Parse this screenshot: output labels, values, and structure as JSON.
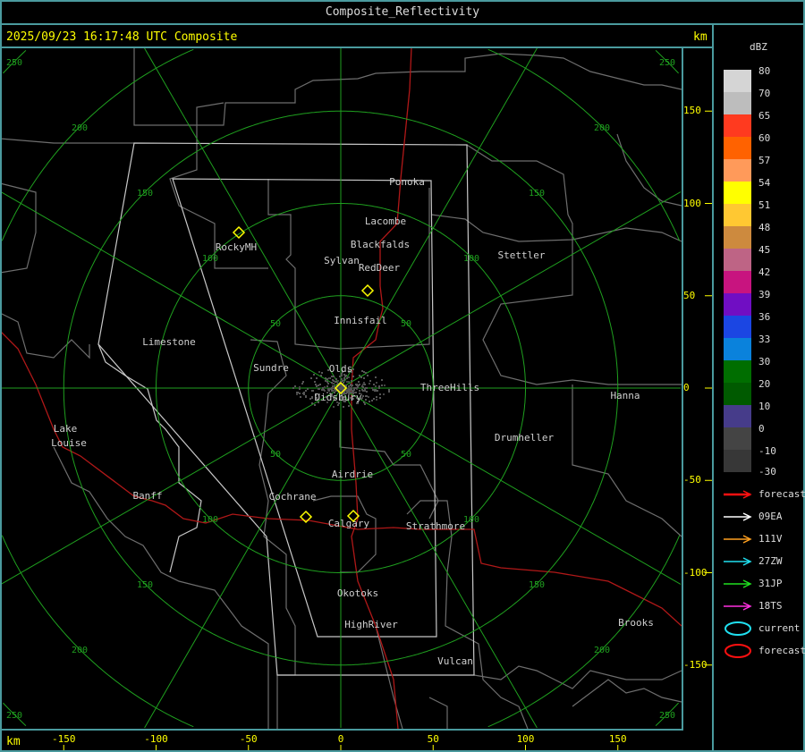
{
  "window": {
    "title": "Composite_Reflectivity"
  },
  "header": {
    "timestamp": "2025/09/23 16:17:48 UTC Composite",
    "unit_top": "km",
    "unit_bottom": "km"
  },
  "axes": {
    "x_ticks": [
      "-150",
      "-100",
      "-50",
      "0",
      "50",
      "100",
      "150"
    ],
    "y_ticks": [
      "150",
      "100",
      "50",
      "0",
      "-50",
      "-100",
      "-150"
    ]
  },
  "rings": {
    "labels": [
      "50",
      "100",
      "150",
      "200",
      "250"
    ],
    "color": "#1fa01f"
  },
  "towns": [
    "Ponoka",
    "Lacombe",
    "Blackfalds",
    "Sylvan",
    "RedDeer",
    "RockyMH",
    "Stettler",
    "Innisfail",
    "Limestone",
    "Sundre",
    "Olds",
    "Didsbury",
    "ThreeHills",
    "Hanna",
    "Drumheller",
    "Lake",
    "Louise",
    "Airdrie",
    "Banff",
    "Cochrane",
    "Calgary",
    "Strathmore",
    "Okotoks",
    "HighRiver",
    "Brooks",
    "Vulcan"
  ],
  "legend": {
    "title": "dBZ",
    "scale": [
      {
        "label": "80",
        "color": "#d5d5d5"
      },
      {
        "label": "70",
        "color": "#bdbdbd"
      },
      {
        "label": "65",
        "color": "#ff3a1f"
      },
      {
        "label": "60",
        "color": "#ff6200"
      },
      {
        "label": "57",
        "color": "#ff9a5a"
      },
      {
        "label": "54",
        "color": "#ffff00"
      },
      {
        "label": "51",
        "color": "#ffc832"
      },
      {
        "label": "48",
        "color": "#cd8a3e"
      },
      {
        "label": "45",
        "color": "#be6485"
      },
      {
        "label": "42",
        "color": "#c8147f"
      },
      {
        "label": "39",
        "color": "#700ec3"
      },
      {
        "label": "36",
        "color": "#1b46e3"
      },
      {
        "label": "33",
        "color": "#0a82dc"
      },
      {
        "label": "30",
        "color": "#006e00"
      },
      {
        "label": "20",
        "color": "#005a00"
      },
      {
        "label": "10",
        "color": "#463c8a"
      },
      {
        "label": "0",
        "color": "#444444"
      },
      {
        "label": "-10",
        "color": "#373737"
      }
    ],
    "bottom_label": "-30",
    "tracks": [
      {
        "label": "forecast",
        "color": "#ff1010"
      },
      {
        "label": "09EA",
        "color": "#ffffff"
      },
      {
        "label": "111V",
        "color": "#ffa020"
      },
      {
        "label": "27ZW",
        "color": "#20e0f0"
      },
      {
        "label": "31JP",
        "color": "#20e020"
      },
      {
        "label": "18TS",
        "color": "#ff30e0"
      }
    ],
    "cells": [
      {
        "label": "current",
        "color": "#20e0f0"
      },
      {
        "label": "forecast",
        "color": "#ff1010"
      }
    ]
  }
}
